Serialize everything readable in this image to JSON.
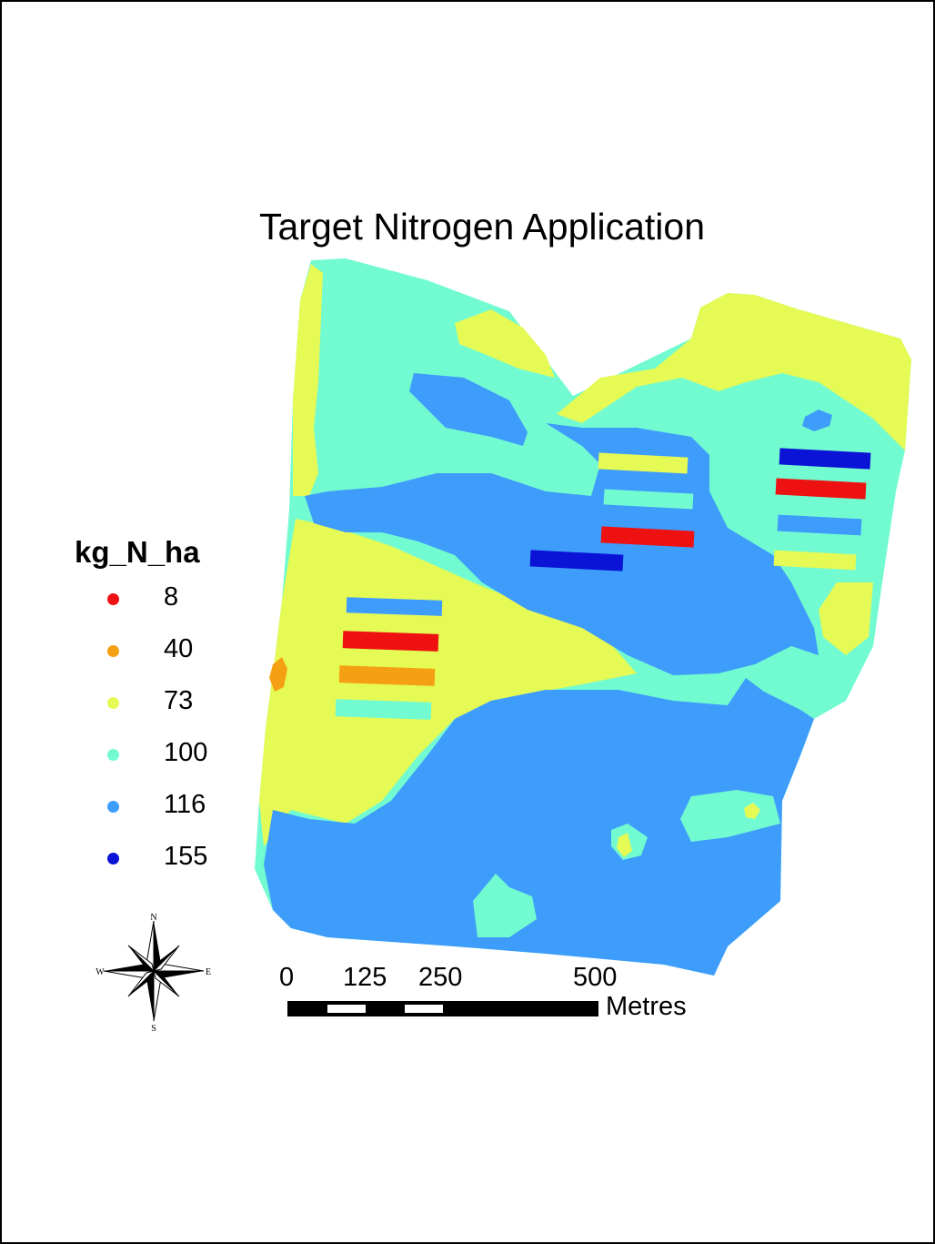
{
  "title": "Target Nitrogen Application",
  "legend": {
    "title": "kg_N_ha",
    "items": [
      {
        "label": "8",
        "color": "#ee1111"
      },
      {
        "label": "40",
        "color": "#f5a013"
      },
      {
        "label": "73",
        "color": "#e6fa55"
      },
      {
        "label": "100",
        "color": "#72fbd0"
      },
      {
        "label": "116",
        "color": "#3e9cfb"
      },
      {
        "label": "155",
        "color": "#0a13d6"
      }
    ]
  },
  "scale_bar": {
    "labels": [
      "0",
      "125",
      "250",
      "500"
    ],
    "unit": "Metres"
  },
  "compass": {
    "n": "N",
    "s": "S",
    "e": "E",
    "w": "W"
  }
}
